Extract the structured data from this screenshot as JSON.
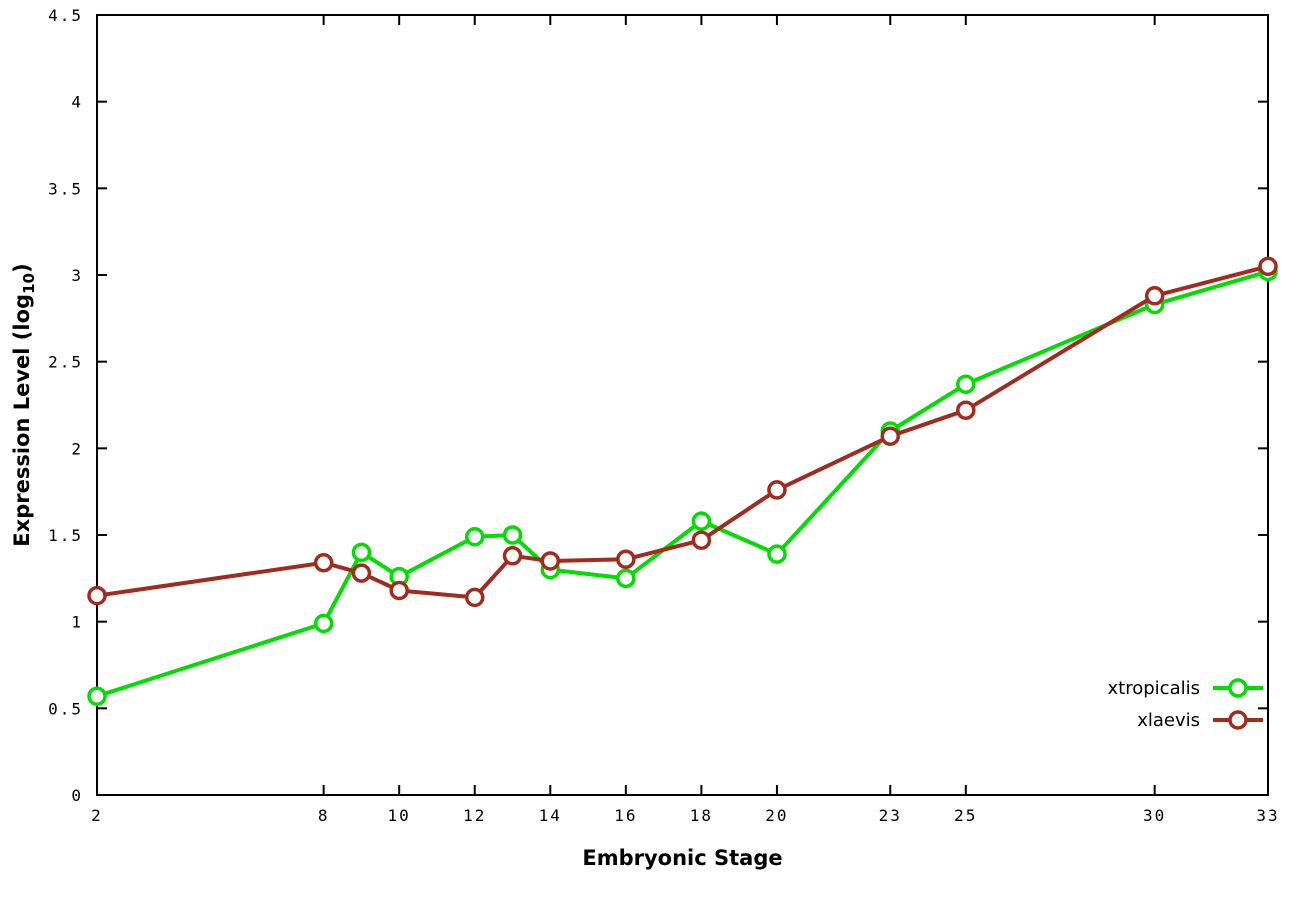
{
  "chart_data": {
    "type": "line",
    "title": "",
    "xlabel": "Embryonic Stage",
    "ylabel": "Expression Level (log10)",
    "ylabel_parts": {
      "main": "Expression Level (log",
      "sub": "10",
      "close": ")"
    },
    "x": [
      2,
      8,
      9,
      10,
      12,
      13,
      14,
      16,
      18,
      20,
      23,
      25,
      30,
      33
    ],
    "xlim": [
      2,
      33
    ],
    "ylim": [
      0,
      4.5
    ],
    "xticks": [
      2,
      8,
      10,
      12,
      14,
      16,
      18,
      20,
      23,
      25,
      30,
      33
    ],
    "yticks": [
      0,
      0.5,
      1,
      1.5,
      2,
      2.5,
      3,
      3.5,
      4,
      4.5
    ],
    "grid": false,
    "legend_position": "bottom-right",
    "series": [
      {
        "name": "xtropicalis",
        "color": "#00dd00",
        "values": [
          0.57,
          0.99,
          1.4,
          1.26,
          1.49,
          1.5,
          1.3,
          1.25,
          1.58,
          1.39,
          2.1,
          2.37,
          2.83,
          3.02
        ]
      },
      {
        "name": "xlaevis",
        "color": "#a02c20",
        "values": [
          1.15,
          1.34,
          1.28,
          1.18,
          1.14,
          1.38,
          1.35,
          1.36,
          1.47,
          1.76,
          2.07,
          2.22,
          2.88,
          3.05
        ]
      }
    ]
  },
  "colors": {
    "axis": "#000000",
    "background": "#ffffff",
    "marker_fill": "#ffffff"
  }
}
